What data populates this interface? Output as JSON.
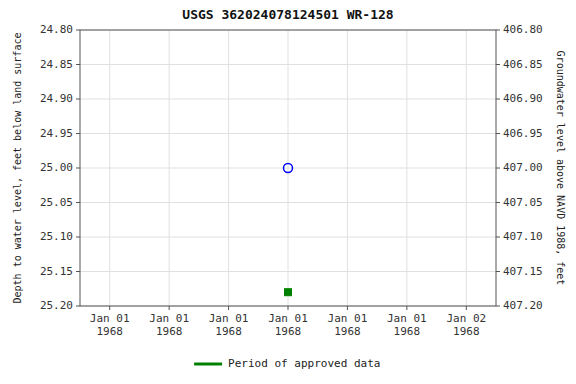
{
  "chart_data": {
    "type": "scatter",
    "title": "USGS 362024078124501 WR-128",
    "y_label": "Depth to water level, feet below land surface",
    "y2_label": "Groundwater level above NAVD 1988, feet",
    "categories": [
      "Jan 01\n1968",
      "Jan 01\n1968",
      "Jan 01\n1968",
      "Jan 01\n1968",
      "Jan 01\n1968",
      "Jan 01\n1968",
      "Jan 02\n1968"
    ],
    "series": [
      {
        "color": "blue",
        "marker": "open-circle",
        "values": [
          null,
          null,
          null,
          25.0,
          null,
          null,
          null
        ]
      },
      {
        "name": "Period of approved data",
        "color": "#008000",
        "marker": "square",
        "values": [
          null,
          null,
          null,
          25.18,
          null,
          null,
          null
        ]
      }
    ],
    "ylim": [
      25.2,
      24.8
    ],
    "yticks": [
      {
        "value": 24.8,
        "label": "24.80"
      },
      {
        "value": 24.85,
        "label": "24.85"
      },
      {
        "value": 24.9,
        "label": "24.90"
      },
      {
        "value": 24.95,
        "label": "24.95"
      },
      {
        "value": 25.0,
        "label": "25.00"
      },
      {
        "value": 25.05,
        "label": "25.05"
      },
      {
        "value": 25.1,
        "label": "25.10"
      },
      {
        "value": 25.15,
        "label": "25.15"
      },
      {
        "value": 25.2,
        "label": "25.20"
      }
    ],
    "y2lim": [
      407.2,
      406.8
    ],
    "y2ticks": [
      {
        "value": 407.2,
        "label": "407.20"
      },
      {
        "value": 407.15,
        "label": "407.15"
      },
      {
        "value": 407.1,
        "label": "407.10"
      },
      {
        "value": 407.05,
        "label": "407.05"
      },
      {
        "value": 407.0,
        "label": "407.00"
      },
      {
        "value": 406.95,
        "label": "406.95"
      },
      {
        "value": 406.9,
        "label": "406.90"
      },
      {
        "value": 406.85,
        "label": "406.85"
      },
      {
        "value": 406.8,
        "label": "406.80"
      }
    ],
    "grid": true,
    "legend": "bottom"
  }
}
